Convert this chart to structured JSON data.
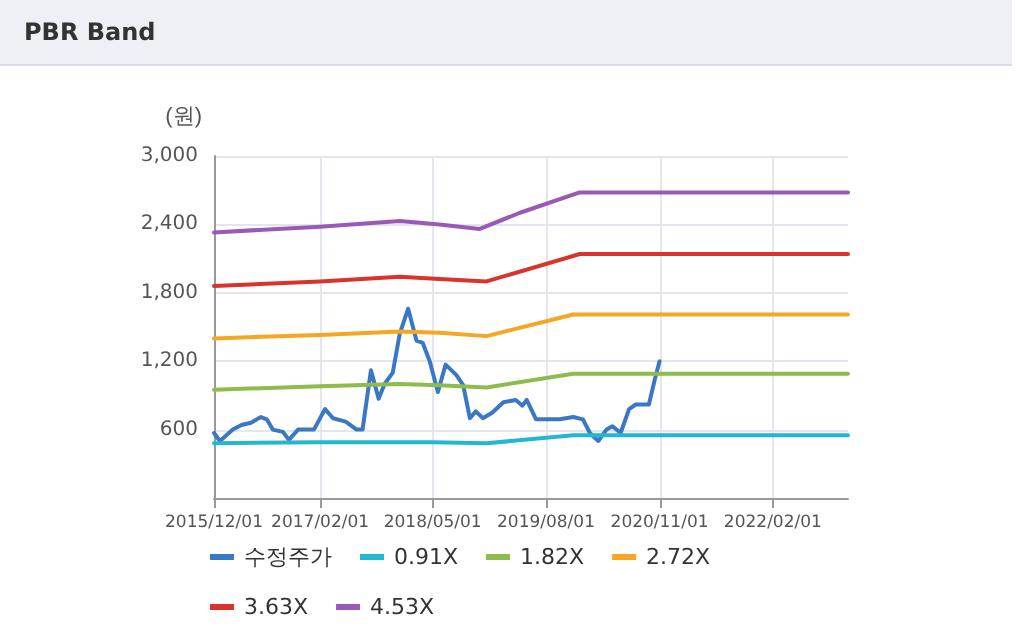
{
  "chart_data": {
    "type": "line",
    "title": "PBR Band",
    "ylabel": "(원)",
    "marker": "none",
    "line_style": "solid",
    "grid": true,
    "legend": "bottom",
    "xlim": [
      "2015-12-01",
      "2022-12-01"
    ],
    "xticks": [
      {
        "value": "2015-12-01",
        "label": "2015/12/01"
      },
      {
        "value": "2017-02-01",
        "label": "2017/02/01"
      },
      {
        "value": "2018-05-01",
        "label": "2018/05/01"
      },
      {
        "value": "2019-08-01",
        "label": "2019/08/01"
      },
      {
        "value": "2020-11-01",
        "label": "2020/11/01"
      },
      {
        "value": "2022-02-01",
        "label": "2022/02/01"
      }
    ],
    "ylim": [
      0,
      3000
    ],
    "yticks": [
      600,
      {
        "value": 1200,
        "label": "1,200"
      },
      {
        "value": 1800,
        "label": "1,800"
      },
      {
        "value": 2400,
        "label": "2,400"
      },
      {
        "value": 3000,
        "label": "3,000"
      }
    ],
    "series": [
      {
        "name": "수정주가",
        "color": "#3a78c3",
        "x": [
          "2015-12-01",
          "2015-12-25",
          "2016-02-15",
          "2016-03-21",
          "2016-04-28",
          "2016-06-07",
          "2016-07-01",
          "2016-07-25",
          "2016-09-04",
          "2016-09-28",
          "2016-11-04",
          "2017-01-07",
          "2017-02-21",
          "2017-03-25",
          "2017-05-15",
          "2017-06-28",
          "2017-07-22",
          "2017-08-25",
          "2017-09-25",
          "2017-10-19",
          "2017-11-21",
          "2017-12-19",
          "2018-01-22",
          "2018-02-25",
          "2018-03-22",
          "2018-04-19",
          "2018-05-22",
          "2018-06-22",
          "2018-08-04",
          "2018-09-01",
          "2018-09-28",
          "2018-10-22",
          "2018-11-19",
          "2018-12-28",
          "2019-02-10",
          "2019-04-01",
          "2019-04-28",
          "2019-05-15",
          "2019-06-22",
          "2019-08-01",
          "2019-09-25",
          "2019-11-19",
          "2019-12-28",
          "2020-01-25",
          "2020-02-28",
          "2020-04-01",
          "2020-04-25",
          "2020-05-28",
          "2020-07-01",
          "2020-07-28",
          "2020-09-19",
          "2020-10-15",
          "2020-11-01"
        ],
        "values": [
          570,
          500,
          600,
          640,
          660,
          710,
          690,
          600,
          580,
          510,
          600,
          600,
          780,
          700,
          670,
          600,
          600,
          1120,
          870,
          1000,
          1100,
          1440,
          1660,
          1380,
          1360,
          1200,
          930,
          1170,
          1080,
          990,
          700,
          760,
          700,
          750,
          840,
          860,
          810,
          860,
          690,
          690,
          690,
          710,
          690,
          570,
          500,
          600,
          630,
          570,
          780,
          820,
          820,
          1060,
          1200
        ]
      },
      {
        "name": "0.91X",
        "color": "#22b8cf",
        "x": [
          "2015-12-01",
          "2017-02-01",
          "2018-05-01",
          "2018-12-04",
          "2019-11-19",
          "2022-12-01"
        ],
        "values": [
          480,
          490,
          490,
          480,
          550,
          550
        ]
      },
      {
        "name": "1.82X",
        "color": "#8dbb4c",
        "x": [
          "2015-12-01",
          "2017-02-01",
          "2017-12-19",
          "2018-05-28",
          "2018-12-04",
          "2019-11-19",
          "2022-12-01"
        ],
        "values": [
          950,
          980,
          1000,
          990,
          970,
          1090,
          1090
        ]
      },
      {
        "name": "2.72X",
        "color": "#f5a623",
        "x": [
          "2015-12-01",
          "2017-02-01",
          "2017-12-19",
          "2018-05-28",
          "2018-12-04",
          "2019-11-19",
          "2022-12-01"
        ],
        "values": [
          1400,
          1430,
          1460,
          1450,
          1420,
          1610,
          1610
        ]
      },
      {
        "name": "3.63X",
        "color": "#d9342b",
        "x": [
          "2015-12-01",
          "2017-02-01",
          "2017-12-19",
          "2018-05-28",
          "2018-12-04",
          "2019-12-15",
          "2022-12-01"
        ],
        "values": [
          1860,
          1900,
          1940,
          1920,
          1900,
          2140,
          2140
        ]
      },
      {
        "name": "4.53X",
        "color": "#9b59b6",
        "x": [
          "2015-12-01",
          "2017-02-01",
          "2017-12-19",
          "2018-05-28",
          "2018-11-07",
          "2019-04-15",
          "2019-12-15",
          "2022-12-01"
        ],
        "values": [
          2330,
          2380,
          2430,
          2400,
          2360,
          2500,
          2680,
          2680
        ]
      }
    ]
  }
}
